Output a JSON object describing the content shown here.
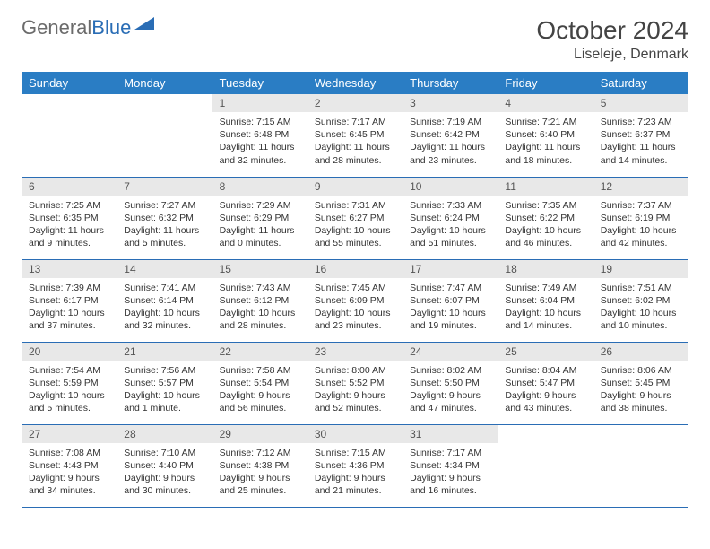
{
  "brand": {
    "part1": "General",
    "part2": "Blue"
  },
  "title": "October 2024",
  "location": "Liseleje, Denmark",
  "colors": {
    "header_bg": "#2a7dc4",
    "border": "#2a6db5",
    "daynum_bg": "#e8e8e8"
  },
  "weekdays": [
    "Sunday",
    "Monday",
    "Tuesday",
    "Wednesday",
    "Thursday",
    "Friday",
    "Saturday"
  ],
  "weeks": [
    [
      null,
      null,
      {
        "n": "1",
        "sunrise": "Sunrise: 7:15 AM",
        "sunset": "Sunset: 6:48 PM",
        "daylight": "Daylight: 11 hours and 32 minutes."
      },
      {
        "n": "2",
        "sunrise": "Sunrise: 7:17 AM",
        "sunset": "Sunset: 6:45 PM",
        "daylight": "Daylight: 11 hours and 28 minutes."
      },
      {
        "n": "3",
        "sunrise": "Sunrise: 7:19 AM",
        "sunset": "Sunset: 6:42 PM",
        "daylight": "Daylight: 11 hours and 23 minutes."
      },
      {
        "n": "4",
        "sunrise": "Sunrise: 7:21 AM",
        "sunset": "Sunset: 6:40 PM",
        "daylight": "Daylight: 11 hours and 18 minutes."
      },
      {
        "n": "5",
        "sunrise": "Sunrise: 7:23 AM",
        "sunset": "Sunset: 6:37 PM",
        "daylight": "Daylight: 11 hours and 14 minutes."
      }
    ],
    [
      {
        "n": "6",
        "sunrise": "Sunrise: 7:25 AM",
        "sunset": "Sunset: 6:35 PM",
        "daylight": "Daylight: 11 hours and 9 minutes."
      },
      {
        "n": "7",
        "sunrise": "Sunrise: 7:27 AM",
        "sunset": "Sunset: 6:32 PM",
        "daylight": "Daylight: 11 hours and 5 minutes."
      },
      {
        "n": "8",
        "sunrise": "Sunrise: 7:29 AM",
        "sunset": "Sunset: 6:29 PM",
        "daylight": "Daylight: 11 hours and 0 minutes."
      },
      {
        "n": "9",
        "sunrise": "Sunrise: 7:31 AM",
        "sunset": "Sunset: 6:27 PM",
        "daylight": "Daylight: 10 hours and 55 minutes."
      },
      {
        "n": "10",
        "sunrise": "Sunrise: 7:33 AM",
        "sunset": "Sunset: 6:24 PM",
        "daylight": "Daylight: 10 hours and 51 minutes."
      },
      {
        "n": "11",
        "sunrise": "Sunrise: 7:35 AM",
        "sunset": "Sunset: 6:22 PM",
        "daylight": "Daylight: 10 hours and 46 minutes."
      },
      {
        "n": "12",
        "sunrise": "Sunrise: 7:37 AM",
        "sunset": "Sunset: 6:19 PM",
        "daylight": "Daylight: 10 hours and 42 minutes."
      }
    ],
    [
      {
        "n": "13",
        "sunrise": "Sunrise: 7:39 AM",
        "sunset": "Sunset: 6:17 PM",
        "daylight": "Daylight: 10 hours and 37 minutes."
      },
      {
        "n": "14",
        "sunrise": "Sunrise: 7:41 AM",
        "sunset": "Sunset: 6:14 PM",
        "daylight": "Daylight: 10 hours and 32 minutes."
      },
      {
        "n": "15",
        "sunrise": "Sunrise: 7:43 AM",
        "sunset": "Sunset: 6:12 PM",
        "daylight": "Daylight: 10 hours and 28 minutes."
      },
      {
        "n": "16",
        "sunrise": "Sunrise: 7:45 AM",
        "sunset": "Sunset: 6:09 PM",
        "daylight": "Daylight: 10 hours and 23 minutes."
      },
      {
        "n": "17",
        "sunrise": "Sunrise: 7:47 AM",
        "sunset": "Sunset: 6:07 PM",
        "daylight": "Daylight: 10 hours and 19 minutes."
      },
      {
        "n": "18",
        "sunrise": "Sunrise: 7:49 AM",
        "sunset": "Sunset: 6:04 PM",
        "daylight": "Daylight: 10 hours and 14 minutes."
      },
      {
        "n": "19",
        "sunrise": "Sunrise: 7:51 AM",
        "sunset": "Sunset: 6:02 PM",
        "daylight": "Daylight: 10 hours and 10 minutes."
      }
    ],
    [
      {
        "n": "20",
        "sunrise": "Sunrise: 7:54 AM",
        "sunset": "Sunset: 5:59 PM",
        "daylight": "Daylight: 10 hours and 5 minutes."
      },
      {
        "n": "21",
        "sunrise": "Sunrise: 7:56 AM",
        "sunset": "Sunset: 5:57 PM",
        "daylight": "Daylight: 10 hours and 1 minute."
      },
      {
        "n": "22",
        "sunrise": "Sunrise: 7:58 AM",
        "sunset": "Sunset: 5:54 PM",
        "daylight": "Daylight: 9 hours and 56 minutes."
      },
      {
        "n": "23",
        "sunrise": "Sunrise: 8:00 AM",
        "sunset": "Sunset: 5:52 PM",
        "daylight": "Daylight: 9 hours and 52 minutes."
      },
      {
        "n": "24",
        "sunrise": "Sunrise: 8:02 AM",
        "sunset": "Sunset: 5:50 PM",
        "daylight": "Daylight: 9 hours and 47 minutes."
      },
      {
        "n": "25",
        "sunrise": "Sunrise: 8:04 AM",
        "sunset": "Sunset: 5:47 PM",
        "daylight": "Daylight: 9 hours and 43 minutes."
      },
      {
        "n": "26",
        "sunrise": "Sunrise: 8:06 AM",
        "sunset": "Sunset: 5:45 PM",
        "daylight": "Daylight: 9 hours and 38 minutes."
      }
    ],
    [
      {
        "n": "27",
        "sunrise": "Sunrise: 7:08 AM",
        "sunset": "Sunset: 4:43 PM",
        "daylight": "Daylight: 9 hours and 34 minutes."
      },
      {
        "n": "28",
        "sunrise": "Sunrise: 7:10 AM",
        "sunset": "Sunset: 4:40 PM",
        "daylight": "Daylight: 9 hours and 30 minutes."
      },
      {
        "n": "29",
        "sunrise": "Sunrise: 7:12 AM",
        "sunset": "Sunset: 4:38 PM",
        "daylight": "Daylight: 9 hours and 25 minutes."
      },
      {
        "n": "30",
        "sunrise": "Sunrise: 7:15 AM",
        "sunset": "Sunset: 4:36 PM",
        "daylight": "Daylight: 9 hours and 21 minutes."
      },
      {
        "n": "31",
        "sunrise": "Sunrise: 7:17 AM",
        "sunset": "Sunset: 4:34 PM",
        "daylight": "Daylight: 9 hours and 16 minutes."
      },
      null,
      null
    ]
  ]
}
